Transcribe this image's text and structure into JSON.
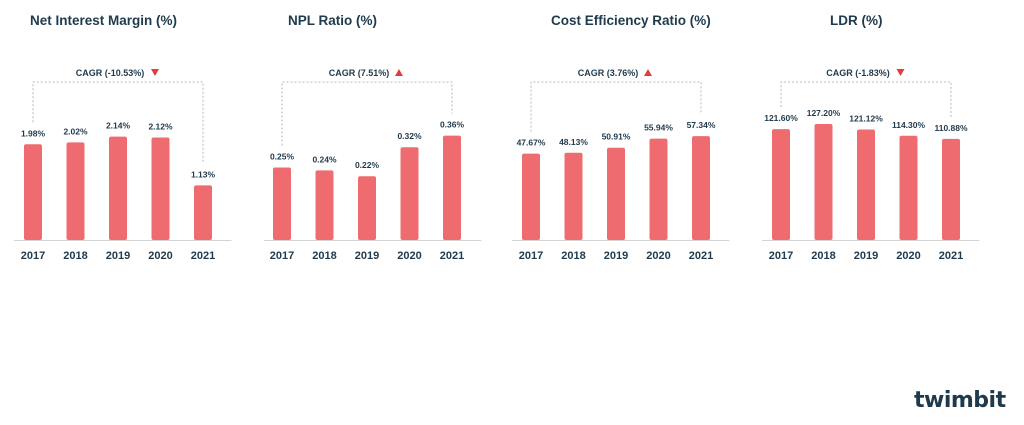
{
  "brand": {
    "logo_text": "twimbit",
    "bar_color": "#ee6c70",
    "text_color": "#1f3a4d",
    "up_color": "#e63b3b",
    "down_color": "#e63b3b"
  },
  "chart_data": [
    {
      "type": "bar",
      "title": "Net Interest Margin (%)",
      "categories": [
        "2017",
        "2018",
        "2019",
        "2020",
        "2021"
      ],
      "values": [
        1.98,
        2.02,
        2.14,
        2.12,
        1.13
      ],
      "data_labels": [
        "1.98%",
        "2.02%",
        "2.14%",
        "2.12%",
        "1.13%"
      ],
      "cagr_label": "CAGR (-10.53%)",
      "trend": "down",
      "ylim": [
        0,
        2.4
      ]
    },
    {
      "type": "bar",
      "title": "NPL Ratio (%)",
      "categories": [
        "2017",
        "2018",
        "2019",
        "2020",
        "2021"
      ],
      "values": [
        0.25,
        0.24,
        0.22,
        0.32,
        0.36
      ],
      "data_labels": [
        "0.25%",
        "0.24%",
        "0.22%",
        "0.32%",
        "0.36%"
      ],
      "cagr_label": "CAGR (7.51%)",
      "trend": "up",
      "ylim": [
        0,
        0.4
      ]
    },
    {
      "type": "bar",
      "title": "Cost Efficiency Ratio  (%)",
      "categories": [
        "2017",
        "2018",
        "2019",
        "2020",
        "2021"
      ],
      "values": [
        47.67,
        48.13,
        50.91,
        55.94,
        57.34
      ],
      "data_labels": [
        "47.67%",
        "48.13%",
        "50.91%",
        "55.94%",
        "57.34%"
      ],
      "cagr_label": "CAGR (3.76%)",
      "trend": "up",
      "ylim": [
        0,
        64
      ]
    },
    {
      "type": "bar",
      "title": "LDR (%)",
      "categories": [
        "2017",
        "2018",
        "2019",
        "2020",
        "2021"
      ],
      "values": [
        121.6,
        127.2,
        121.12,
        114.3,
        110.88
      ],
      "data_labels": [
        "121.60%",
        "127.20%",
        "121.12%",
        "114.30%",
        "110.88%"
      ],
      "cagr_label": "CAGR (-1.83%)",
      "trend": "down",
      "ylim": [
        0,
        127.2
      ]
    }
  ]
}
